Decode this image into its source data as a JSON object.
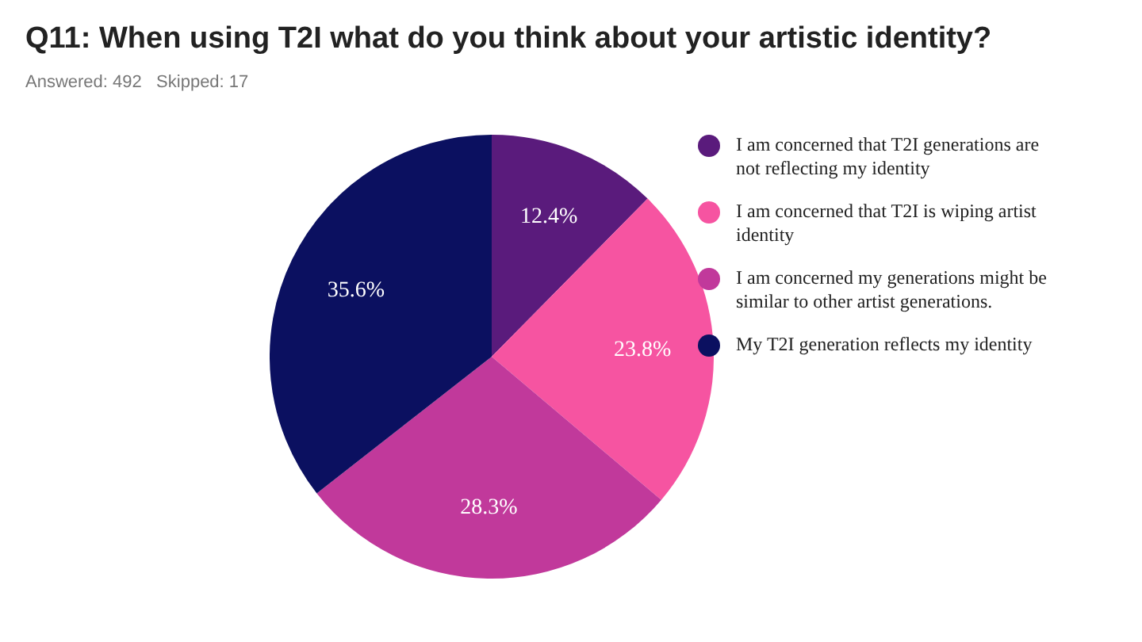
{
  "chart_data": {
    "type": "pie",
    "title": "Q11: When using T2I what do you think about your artistic identity?",
    "subtitle": "Answered: 492   Skipped: 17",
    "categories": [
      "I am concerned that T2I generations are not reflecting my identity",
      "I am concerned that T2I is wiping artist identity",
      "I am concerned my generations might be similar to other artist generations.",
      "My T2I generation reflects my identity"
    ],
    "values": [
      12.4,
      23.8,
      28.3,
      35.6
    ],
    "colors": [
      "#5a1b7c",
      "#f654a1",
      "#c1399b",
      "#0b1060"
    ],
    "value_labels": [
      "12.4%",
      "23.8%",
      "28.3%",
      "35.6%"
    ],
    "legend": "right"
  }
}
